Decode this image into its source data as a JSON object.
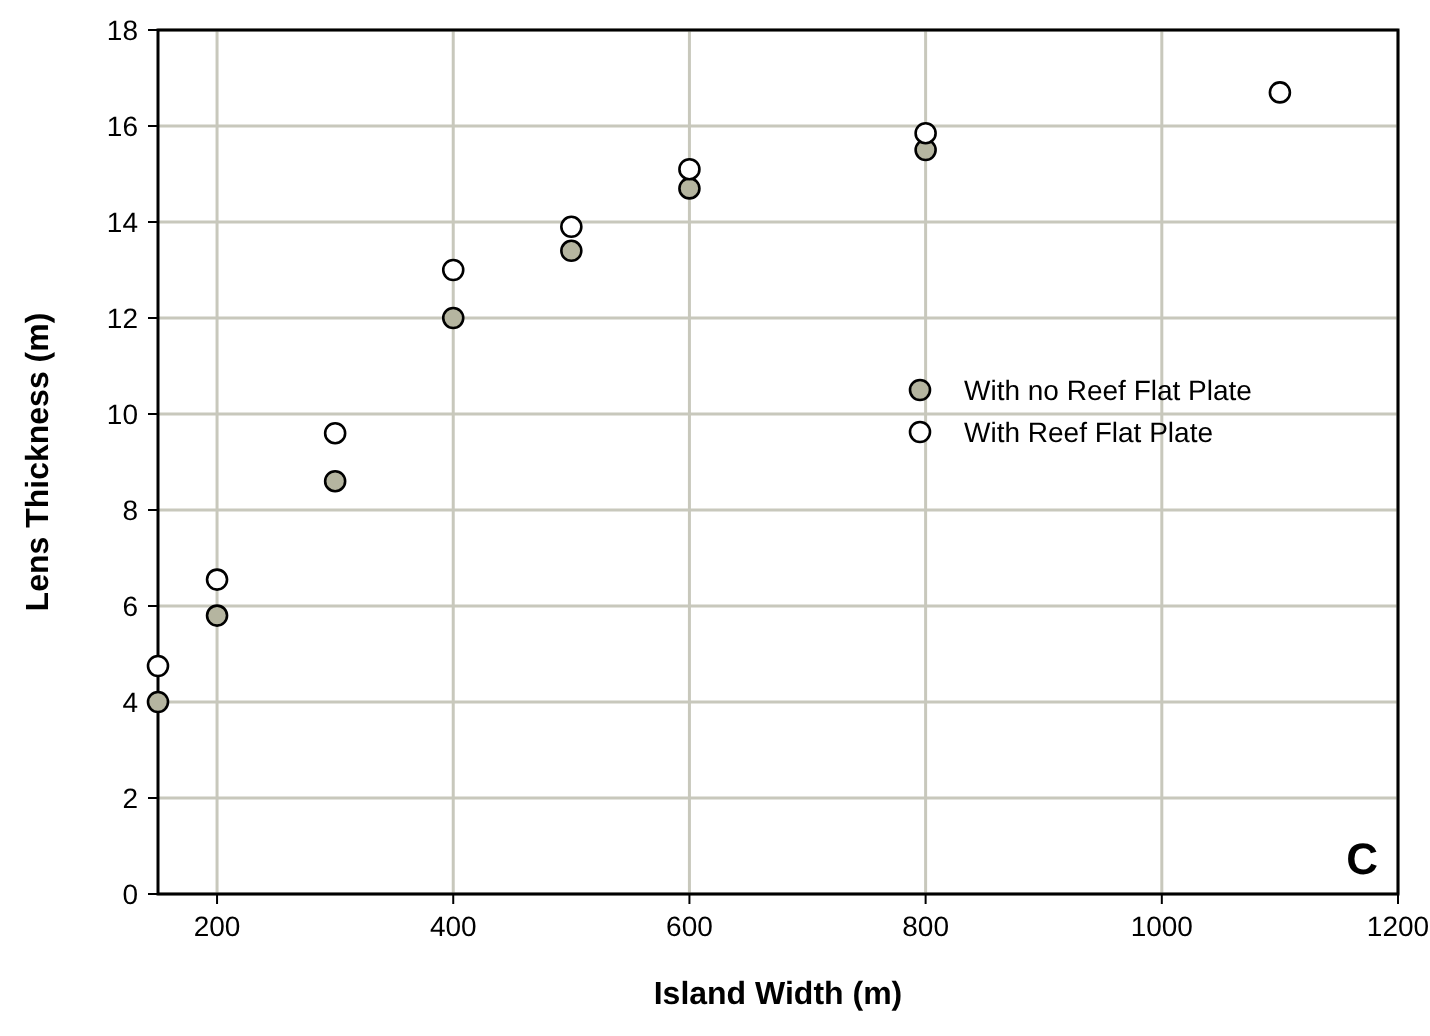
{
  "chart_data": {
    "type": "scatter",
    "xlabel": "Island Width (m)",
    "ylabel": "Lens Thickness (m)",
    "x": [
      150,
      200,
      300,
      400,
      500,
      600,
      800,
      1100
    ],
    "series": [
      {
        "name": "With no Reef Flat Plate",
        "color": "#b5b5a0",
        "values": [
          4.0,
          5.8,
          8.6,
          12.0,
          13.4,
          14.7,
          15.5,
          null
        ]
      },
      {
        "name": "With Reef Flat Plate",
        "color": "#ffffff",
        "values": [
          4.75,
          6.55,
          9.6,
          13.0,
          13.9,
          15.1,
          15.85,
          16.7
        ]
      }
    ],
    "xlim": [
      150,
      1200
    ],
    "xticks": [
      200,
      400,
      600,
      800,
      1000,
      1200
    ],
    "ylim": [
      0,
      18
    ],
    "yticks": [
      0,
      2,
      4,
      6,
      8,
      10,
      12,
      14,
      16,
      18
    ],
    "grid": true,
    "legend": "right",
    "marker": "circle",
    "annotations": [
      "C"
    ]
  }
}
